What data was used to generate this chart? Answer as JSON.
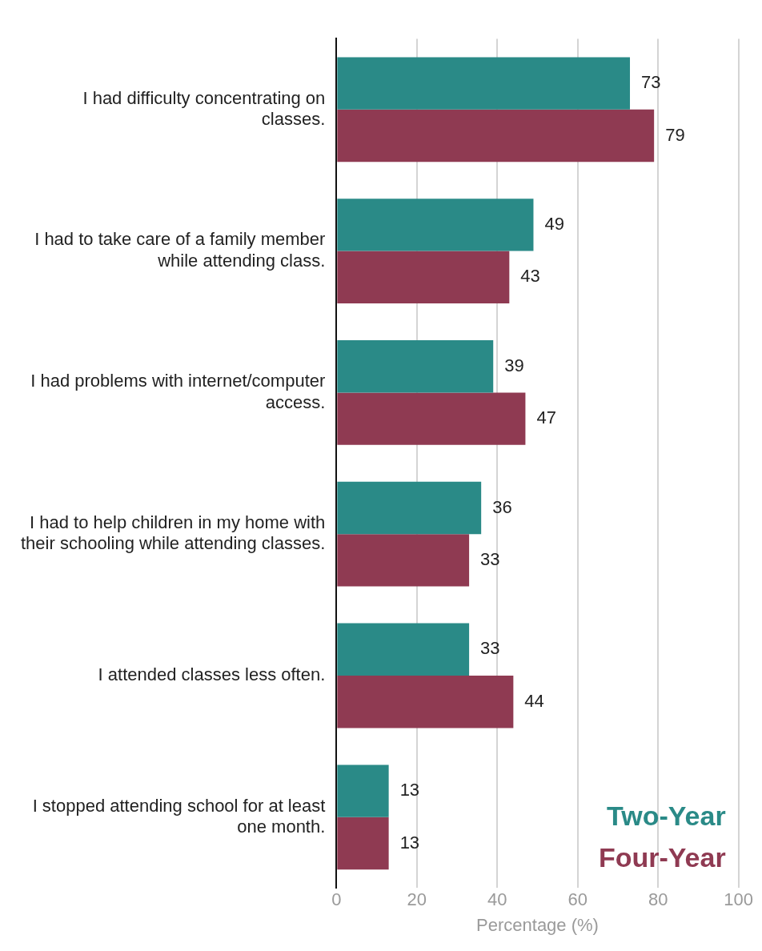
{
  "chart_data": {
    "type": "bar",
    "orientation": "horizontal",
    "categories": [
      "I had difficulty concentrating on classes.",
      "I had to take care of a family member while attending class.",
      "I had problems with internet/computer access.",
      "I had to help children in my home with their schooling while attending classes.",
      "I attended classes less often.",
      "I stopped attending school for at least one month."
    ],
    "series": [
      {
        "name": "Two-Year",
        "color": "#2a8a87",
        "values": [
          73,
          49,
          39,
          36,
          33,
          13
        ]
      },
      {
        "name": "Four-Year",
        "color": "#8f3a52",
        "values": [
          79,
          43,
          47,
          33,
          44,
          13
        ]
      }
    ],
    "xlabel": "Percentage (%)",
    "xlim": [
      0,
      100
    ],
    "xticks": [
      0,
      20,
      40,
      60,
      80,
      100
    ],
    "grid": "x",
    "legend": "bottom right",
    "data_labels": true
  }
}
